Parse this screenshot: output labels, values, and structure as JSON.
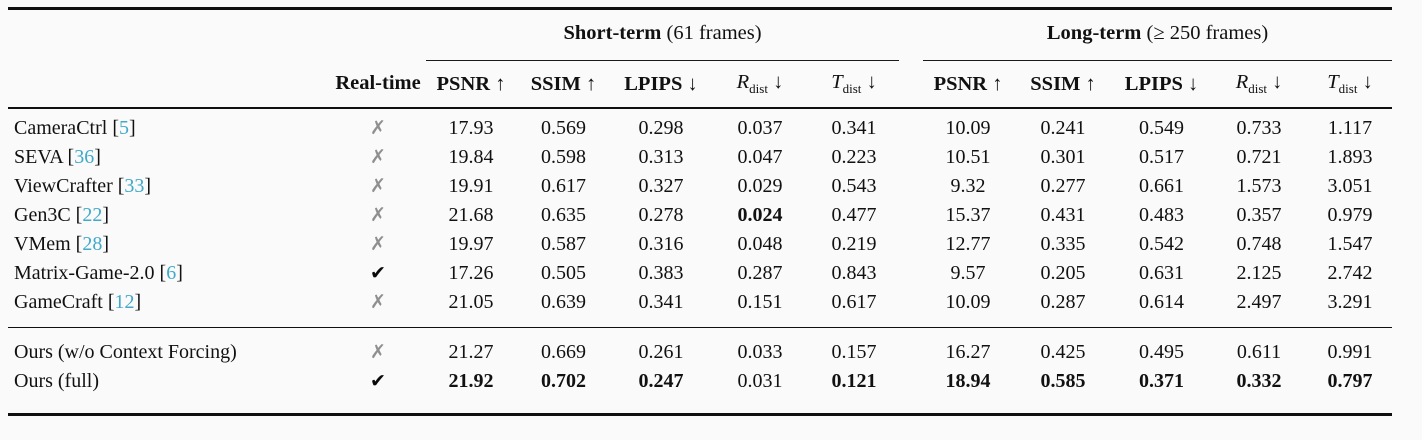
{
  "glyphs": {
    "check": "✔",
    "cross": "✗"
  },
  "colors": {
    "citation": "#41a9c9",
    "cross": "#8f8f8f",
    "check": "#0a0a0a"
  },
  "table": {
    "groups": [
      {
        "title_bold": "Short-term",
        "title_rest": "(61 frames)"
      },
      {
        "title_bold": "Long-term",
        "title_rest": "(≥ 250 frames)"
      }
    ],
    "realtime_header": "Real-time",
    "metric_headers": [
      {
        "name": "PSNR",
        "arrow": "↑"
      },
      {
        "name": "SSIM",
        "arrow": "↑"
      },
      {
        "name": "LPIPS",
        "arrow": "↓"
      },
      {
        "name": "R",
        "sub": "dist",
        "arrow": "↓"
      },
      {
        "name": "T",
        "sub": "dist",
        "arrow": "↓"
      }
    ],
    "rows": [
      {
        "method": "CameraCtrl",
        "cite": "5",
        "realtime": false,
        "section": 1,
        "short": [
          "17.93",
          "0.569",
          "0.298",
          "0.037",
          "0.341"
        ],
        "bold_short": [],
        "long": [
          "10.09",
          "0.241",
          "0.549",
          "0.733",
          "1.117"
        ],
        "bold_long": []
      },
      {
        "method": "SEVA",
        "cite": "36",
        "realtime": false,
        "section": 1,
        "short": [
          "19.84",
          "0.598",
          "0.313",
          "0.047",
          "0.223"
        ],
        "bold_short": [],
        "long": [
          "10.51",
          "0.301",
          "0.517",
          "0.721",
          "1.893"
        ],
        "bold_long": []
      },
      {
        "method": "ViewCrafter",
        "cite": "33",
        "realtime": false,
        "section": 1,
        "short": [
          "19.91",
          "0.617",
          "0.327",
          "0.029",
          "0.543"
        ],
        "bold_short": [],
        "long": [
          "9.32",
          "0.277",
          "0.661",
          "1.573",
          "3.051"
        ],
        "bold_long": []
      },
      {
        "method": "Gen3C",
        "cite": "22",
        "realtime": false,
        "section": 1,
        "short": [
          "21.68",
          "0.635",
          "0.278",
          "0.024",
          "0.477"
        ],
        "bold_short": [
          3
        ],
        "long": [
          "15.37",
          "0.431",
          "0.483",
          "0.357",
          "0.979"
        ],
        "bold_long": []
      },
      {
        "method": "VMem",
        "cite": "28",
        "realtime": false,
        "section": 1,
        "short": [
          "19.97",
          "0.587",
          "0.316",
          "0.048",
          "0.219"
        ],
        "bold_short": [],
        "long": [
          "12.77",
          "0.335",
          "0.542",
          "0.748",
          "1.547"
        ],
        "bold_long": []
      },
      {
        "method": "Matrix-Game-2.0",
        "cite": "6",
        "realtime": true,
        "section": 1,
        "short": [
          "17.26",
          "0.505",
          "0.383",
          "0.287",
          "0.843"
        ],
        "bold_short": [],
        "long": [
          "9.57",
          "0.205",
          "0.631",
          "2.125",
          "2.742"
        ],
        "bold_long": []
      },
      {
        "method": "GameCraft",
        "cite": "12",
        "realtime": false,
        "section": 1,
        "short": [
          "21.05",
          "0.639",
          "0.341",
          "0.151",
          "0.617"
        ],
        "bold_short": [],
        "long": [
          "10.09",
          "0.287",
          "0.614",
          "2.497",
          "3.291"
        ],
        "bold_long": []
      },
      {
        "method": "Ours (w/o Context Forcing)",
        "cite": null,
        "realtime": false,
        "section": 2,
        "short": [
          "21.27",
          "0.669",
          "0.261",
          "0.033",
          "0.157"
        ],
        "bold_short": [],
        "long": [
          "16.27",
          "0.425",
          "0.495",
          "0.611",
          "0.991"
        ],
        "bold_long": []
      },
      {
        "method": "Ours (full)",
        "cite": null,
        "realtime": true,
        "section": 2,
        "short": [
          "21.92",
          "0.702",
          "0.247",
          "0.031",
          "0.121"
        ],
        "bold_short": [
          0,
          1,
          2,
          4
        ],
        "long": [
          "18.94",
          "0.585",
          "0.371",
          "0.332",
          "0.797"
        ],
        "bold_long": [
          0,
          1,
          2,
          3,
          4
        ]
      }
    ]
  }
}
